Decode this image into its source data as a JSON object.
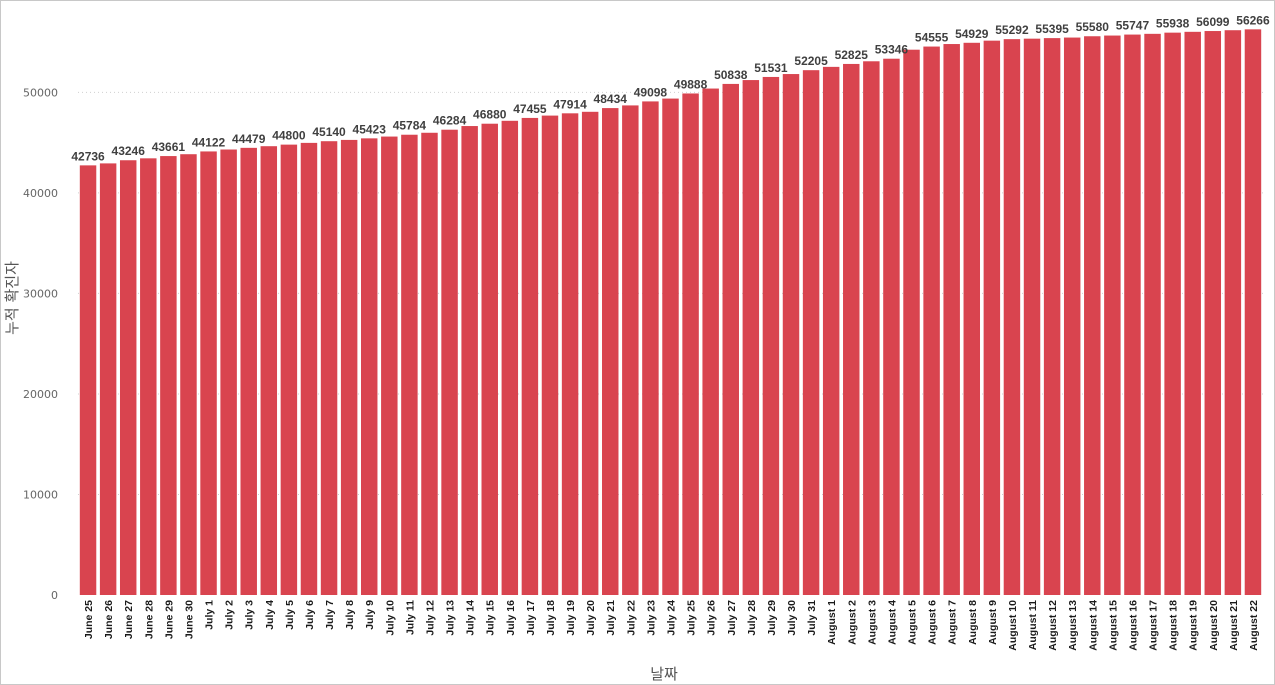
{
  "chart_data": {
    "type": "bar",
    "title": "",
    "xlabel": "날짜",
    "ylabel": "누적 확진자",
    "ylim": [
      0,
      56500
    ],
    "yticks": [
      0,
      10000,
      20000,
      30000,
      40000,
      50000
    ],
    "grid": true,
    "color": "#d9444f",
    "categories": [
      "June 25",
      "June 26",
      "June 27",
      "June 28",
      "June 29",
      "June 30",
      "July 1",
      "July 2",
      "July 3",
      "July 4",
      "July 5",
      "July 6",
      "July 7",
      "July 8",
      "July 9",
      "July 10",
      "July 11",
      "July 12",
      "July 13",
      "July 14",
      "July 15",
      "July 16",
      "July 17",
      "July 18",
      "July 19",
      "July 20",
      "July 21",
      "July 22",
      "July 23",
      "July 24",
      "July 25",
      "July 26",
      "July 27",
      "July 28",
      "July 29",
      "July 30",
      "July 31",
      "August 1",
      "August 2",
      "August 3",
      "August 4",
      "August 5",
      "August 6",
      "August 7",
      "August 8",
      "August 9",
      "August 10",
      "August 11",
      "August 12",
      "August 13",
      "August 14",
      "August 15",
      "August 16",
      "August 17",
      "August 18",
      "August 19",
      "August 20",
      "August 21",
      "August 22"
    ],
    "values": [
      42736,
      42933,
      43246,
      43437,
      43661,
      43846,
      44122,
      44313,
      44479,
      44643,
      44800,
      44973,
      45140,
      45269,
      45423,
      45602,
      45784,
      45979,
      46284,
      46648,
      46880,
      47169,
      47455,
      47688,
      47914,
      48065,
      48434,
      48700,
      49098,
      49380,
      49888,
      50378,
      50838,
      51221,
      51531,
      51820,
      52205,
      52534,
      52825,
      53090,
      53346,
      54242,
      54555,
      54805,
      54929,
      55142,
      55292,
      55340,
      55395,
      55450,
      55580,
      55650,
      55747,
      55820,
      55938,
      56020,
      56099,
      56180,
      56266
    ],
    "labeled_indices": [
      0,
      2,
      4,
      6,
      8,
      10,
      12,
      14,
      16,
      18,
      20,
      22,
      24,
      26,
      28,
      30,
      32,
      34,
      36,
      38,
      40,
      42,
      44,
      46,
      48,
      50,
      52,
      54,
      56,
      58
    ]
  }
}
